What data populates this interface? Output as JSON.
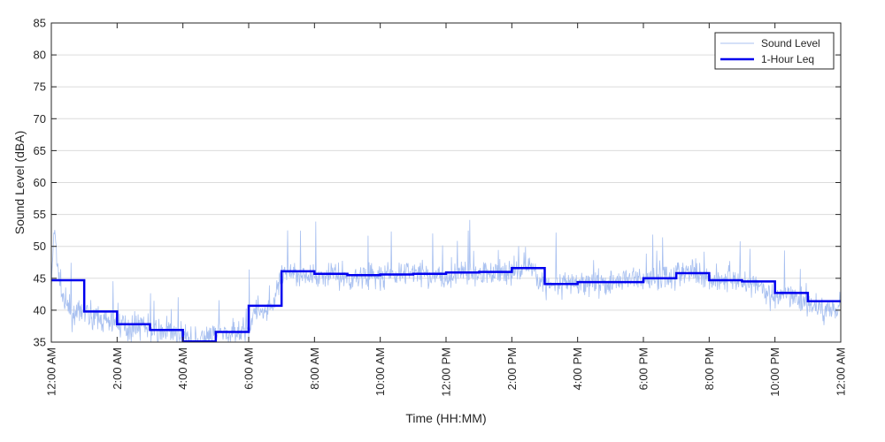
{
  "chart_data": {
    "type": "line",
    "xlabel": "Time (HH:MM)",
    "ylabel": "Sound Level (dBA)",
    "xlim": [
      0,
      24
    ],
    "ylim": [
      35,
      85
    ],
    "grid": "horizontal",
    "legend_position": "top-right",
    "x_ticks": [
      {
        "value": 0,
        "label": "12:00 AM"
      },
      {
        "value": 2,
        "label": "2:00 AM"
      },
      {
        "value": 4,
        "label": "4:00 AM"
      },
      {
        "value": 6,
        "label": "6:00 AM"
      },
      {
        "value": 8,
        "label": "8:00 AM"
      },
      {
        "value": 10,
        "label": "10:00 AM"
      },
      {
        "value": 12,
        "label": "12:00 PM"
      },
      {
        "value": 14,
        "label": "2:00 PM"
      },
      {
        "value": 16,
        "label": "4:00 PM"
      },
      {
        "value": 18,
        "label": "6:00 PM"
      },
      {
        "value": 20,
        "label": "8:00 PM"
      },
      {
        "value": 22,
        "label": "10:00 PM"
      },
      {
        "value": 24,
        "label": "12:00 AM"
      }
    ],
    "y_ticks": [
      35,
      40,
      45,
      50,
      55,
      60,
      65,
      70,
      75,
      80,
      85
    ],
    "series": [
      {
        "name": "Sound Level",
        "color": "#a8c0f0",
        "style": "thin-noisy",
        "x": [
          0,
          0.1,
          0.2,
          0.35,
          0.5,
          0.75,
          1.0,
          1.25,
          1.5,
          1.75,
          2.0,
          2.25,
          2.5,
          2.75,
          3.0,
          3.25,
          3.5,
          3.75,
          4.0,
          4.25,
          4.5,
          4.75,
          5.0,
          5.25,
          5.5,
          5.75,
          6.0,
          6.25,
          6.5,
          6.75,
          7.0,
          7.25,
          7.5,
          7.75,
          8.0,
          8.5,
          9.0,
          9.5,
          10.0,
          10.5,
          11.0,
          11.5,
          12.0,
          12.5,
          13.0,
          13.5,
          14.0,
          14.5,
          15.0,
          15.5,
          16.0,
          16.5,
          17.0,
          17.5,
          18.0,
          18.5,
          19.0,
          19.5,
          20.0,
          20.5,
          21.0,
          21.5,
          22.0,
          22.5,
          23.0,
          23.5,
          24.0
        ],
        "y": [
          44,
          53,
          46,
          42,
          40,
          39,
          40,
          39,
          38.5,
          38,
          38,
          37.5,
          37,
          38,
          37,
          36.5,
          37,
          36,
          35.5,
          35,
          35,
          35.5,
          36,
          36.5,
          36,
          36.5,
          38,
          40,
          40,
          41,
          45,
          46,
          46,
          45,
          45,
          46,
          45,
          45.5,
          45,
          45.5,
          46,
          45.5,
          45,
          46,
          45.5,
          46,
          46,
          47,
          44,
          44,
          44,
          44.5,
          44,
          45,
          45,
          45,
          45.5,
          46,
          45,
          45,
          44.5,
          44,
          42,
          42,
          41,
          40,
          41
        ]
      },
      {
        "name": "1-Hour Leq",
        "color": "#0000ee",
        "style": "step",
        "x": [
          0,
          1,
          2,
          3,
          4,
          5,
          6,
          7,
          8,
          9,
          10,
          11,
          12,
          13,
          14,
          15,
          16,
          17,
          18,
          19,
          20,
          21,
          22,
          23,
          24
        ],
        "y": [
          44.7,
          39.8,
          37.8,
          36.9,
          35.1,
          36.6,
          40.7,
          46.1,
          45.7,
          45.5,
          45.6,
          45.7,
          45.9,
          46.0,
          46.6,
          44.1,
          44.4,
          44.4,
          45.0,
          45.8,
          44.7,
          44.5,
          42.7,
          41.4,
          41.4
        ]
      }
    ]
  }
}
